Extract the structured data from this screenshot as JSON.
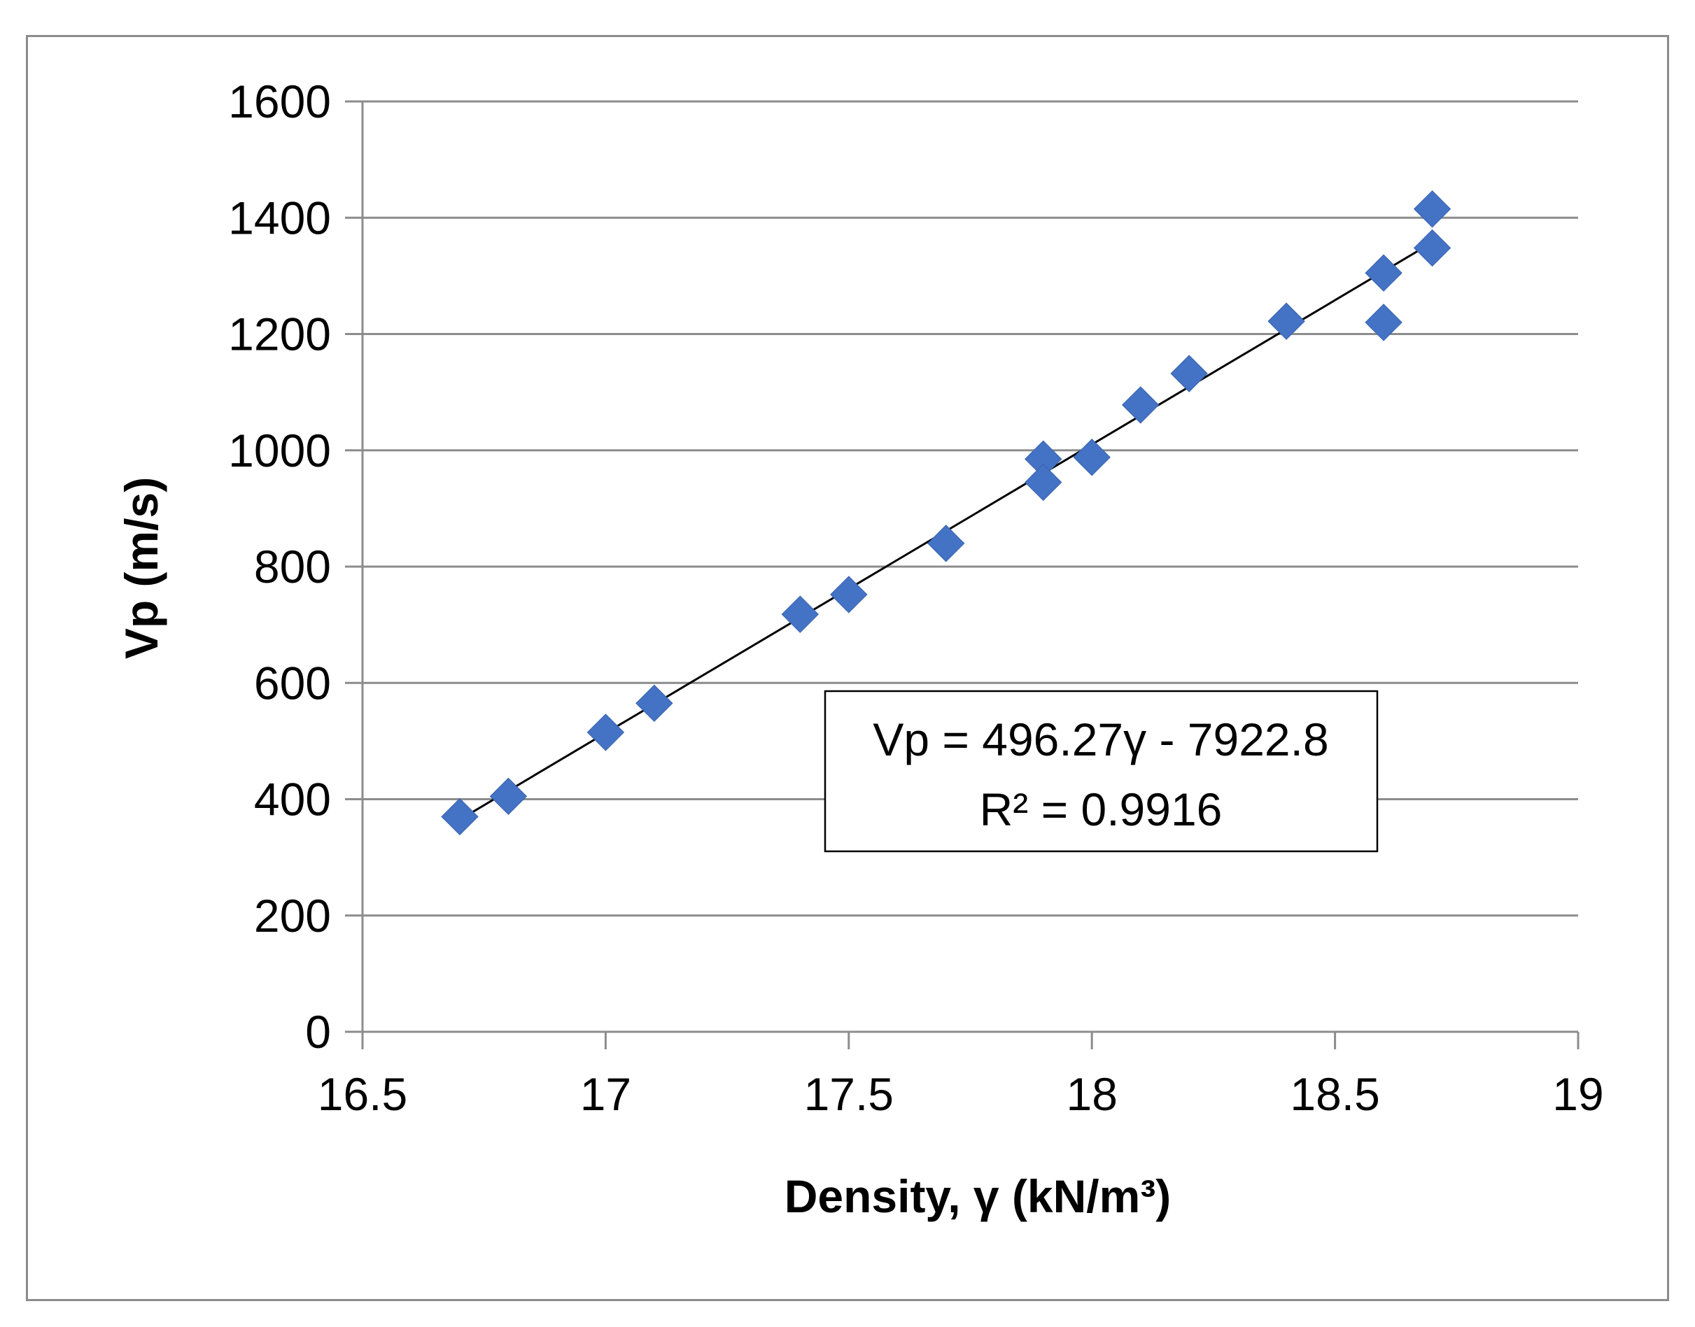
{
  "chart_data": {
    "type": "scatter",
    "xlabel": "Density, γ (kN/m³)",
    "ylabel": "Vp (m/s)",
    "xlim": [
      16.5,
      19
    ],
    "ylim": [
      0,
      1600
    ],
    "x_ticks": [
      "16.5",
      "17",
      "17.5",
      "18",
      "18.5",
      "19"
    ],
    "y_ticks": [
      "0",
      "200",
      "400",
      "600",
      "800",
      "1000",
      "1200",
      "1400",
      "1600"
    ],
    "grid": "horizontal",
    "marker": "diamond",
    "marker_color": "#4472C4",
    "trendline_color": "#000000",
    "series": [
      {
        "points": [
          {
            "x": 16.7,
            "y": 370
          },
          {
            "x": 16.8,
            "y": 405
          },
          {
            "x": 17.0,
            "y": 515
          },
          {
            "x": 17.1,
            "y": 565
          },
          {
            "x": 17.4,
            "y": 718
          },
          {
            "x": 17.5,
            "y": 752
          },
          {
            "x": 17.7,
            "y": 840
          },
          {
            "x": 17.9,
            "y": 985
          },
          {
            "x": 17.9,
            "y": 945
          },
          {
            "x": 18.0,
            "y": 988
          },
          {
            "x": 18.1,
            "y": 1078
          },
          {
            "x": 18.2,
            "y": 1132
          },
          {
            "x": 18.4,
            "y": 1222
          },
          {
            "x": 18.6,
            "y": 1305
          },
          {
            "x": 18.6,
            "y": 1220
          },
          {
            "x": 18.7,
            "y": 1415
          },
          {
            "x": 18.7,
            "y": 1348
          }
        ]
      }
    ],
    "trendline": {
      "slope": 496.27,
      "intercept": -7922.8,
      "x_range": [
        16.7,
        18.7
      ],
      "equation": "Vp = 496.27γ - 7922.8",
      "r_squared": "R² = 0.9916"
    }
  }
}
